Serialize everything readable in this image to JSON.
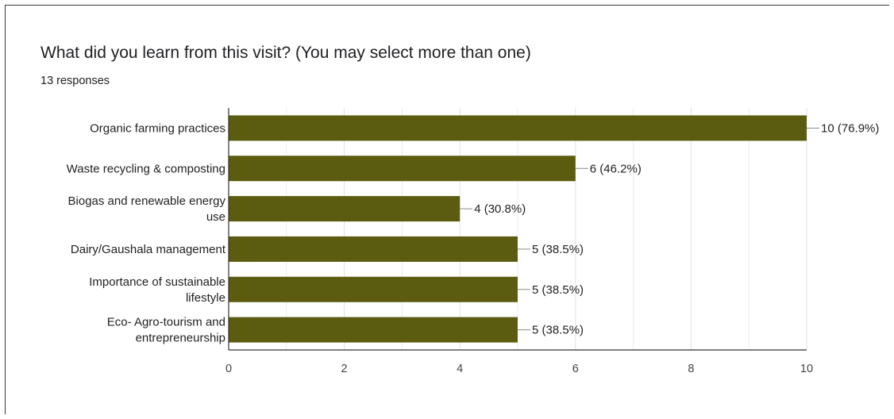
{
  "question": {
    "title": "What did you learn from this visit? (You may select more than one)",
    "responses": "13 responses"
  },
  "colors": {
    "bar": "#5c5c10",
    "grid": "#e0e0e0",
    "axis": "#333333",
    "leader": "#8a8a8a"
  },
  "chart_data": {
    "type": "bar",
    "orientation": "horizontal",
    "categories": [
      [
        "Organic farming practices"
      ],
      [
        "Waste recycling & composting"
      ],
      [
        "Biogas and renewable energy",
        "use"
      ],
      [
        "Dairy/Gaushala management"
      ],
      [
        "Importance of sustainable",
        "lifestyle"
      ],
      [
        "Eco- Agro-tourism and",
        "entrepreneurship"
      ]
    ],
    "values": [
      10,
      6,
      4,
      5,
      5,
      5
    ],
    "data_labels": [
      "10 (76.9%)",
      "6 (46.2%)",
      "4 (30.8%)",
      "5 (38.5%)",
      "5 (38.5%)",
      "5 (38.5%)"
    ],
    "xlim": [
      0,
      10
    ],
    "xticks": [
      0,
      2,
      4,
      6,
      8,
      10
    ],
    "grid": true
  }
}
